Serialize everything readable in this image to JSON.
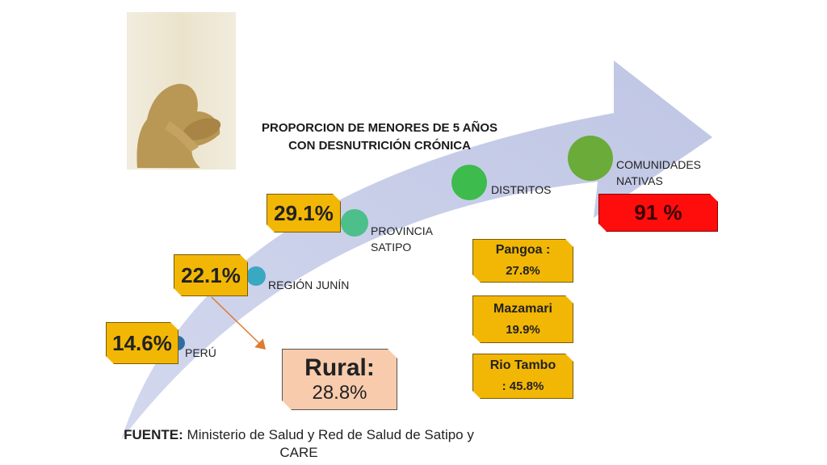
{
  "title": {
    "line1": "PROPORCION DE MENORES DE 5 AÑOS",
    "line2": "CON DESNUTRICIÓN CRÓNICA"
  },
  "levels": [
    {
      "label": "PERÚ",
      "value": "14.6%",
      "color": "#2e6da4"
    },
    {
      "label": "REGIÓN JUNÍN",
      "value": "22.1%",
      "color": "#3aa8c1"
    },
    {
      "label_line1": "PROVINCIA",
      "label_line2": "SATIPO",
      "value": "29.1%",
      "color": "#4cbf8b"
    },
    {
      "label": "DISTRITOS",
      "color": "#3dbb4c"
    },
    {
      "label_line1": "COMUNIDADES",
      "label_line2": "NATIVAS",
      "value": "91 %",
      "color": "#6aab3a"
    }
  ],
  "districts": [
    {
      "name": "Pangoa :",
      "value": "27.8%"
    },
    {
      "name": "Mazamari",
      "value": "19.9%"
    },
    {
      "name": "Rio Tambo",
      "value": ": 45.8%"
    }
  ],
  "rural": {
    "label": "Rural:",
    "value": "28.8%"
  },
  "source": {
    "bold": "FUENTE:",
    "text": " Ministerio de Salud y Red de Salud de Satipo  y",
    "line2": "CARE"
  },
  "colors": {
    "arrow": "#c9cfe9",
    "note_yellow": "#f2b705",
    "note_red": "#ff0d0d",
    "rural_peach": "#f8cbad",
    "pointer": "#e07a2e"
  }
}
